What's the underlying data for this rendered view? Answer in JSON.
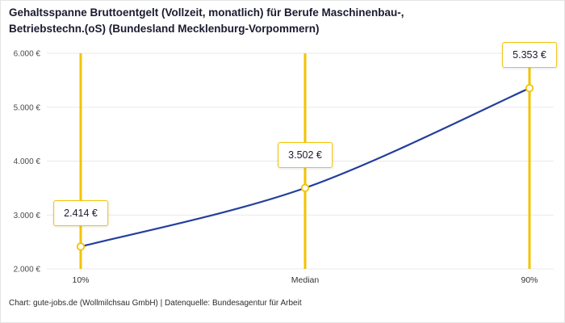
{
  "title": "Gehaltsspanne Bruttoentgelt (Vollzeit, monatlich) für Berufe Maschinenbau-, Betriebstechn.(oS) (Bundesland Mecklenburg-Vorpommern)",
  "footer": "Chart: gute-jobs.de (Wollmilchsau GmbH) | Datenquelle: Bundesagentur für Arbeit",
  "colors": {
    "line": "#233f9c",
    "accent": "#f3c300",
    "grid": "#e9e9e9",
    "ytick_text": "#4a4a4a",
    "xtick_text": "#333333",
    "text": "#1b1b30"
  },
  "chart_data": {
    "type": "line",
    "x": [
      "10%",
      "Median",
      "90%"
    ],
    "values": [
      2414,
      3502,
      5353
    ],
    "point_labels": [
      "2.414 €",
      "3.502 €",
      "5.353 €"
    ],
    "ylim": [
      2000,
      6000
    ],
    "yticks": [
      2000,
      3000,
      4000,
      5000,
      6000
    ],
    "ytick_labels": [
      "2.000 €",
      "3.000 €",
      "4.000 €",
      "5.000 €",
      "6.000 €"
    ],
    "grid": true,
    "legend": "none",
    "title": "Gehaltsspanne Bruttoentgelt (Vollzeit, monatlich) für Berufe Maschinenbau-, Betriebstechn.(oS) (Bundesland Mecklenburg-Vorpommern)",
    "xlabel": "",
    "ylabel": ""
  }
}
